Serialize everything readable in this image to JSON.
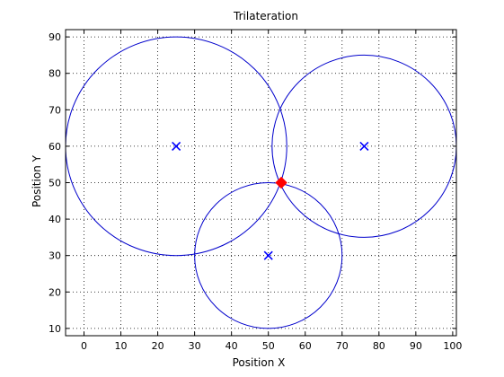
{
  "chart_data": {
    "type": "scatter",
    "title": "Trilateration",
    "xlabel": "Position X",
    "ylabel": "Position Y",
    "xlim": [
      -5,
      101
    ],
    "ylim": [
      8,
      92
    ],
    "xticks": [
      0,
      10,
      20,
      30,
      40,
      50,
      60,
      70,
      80,
      90,
      100
    ],
    "yticks": [
      10,
      20,
      30,
      40,
      50,
      60,
      70,
      80,
      90
    ],
    "grid": true,
    "circles": [
      {
        "cx": 25,
        "cy": 60,
        "r": 30
      },
      {
        "cx": 76,
        "cy": 60,
        "r": 25
      },
      {
        "cx": 50,
        "cy": 30,
        "r": 20
      }
    ],
    "anchors": [
      {
        "x": 25,
        "y": 60
      },
      {
        "x": 76,
        "y": 60
      },
      {
        "x": 50,
        "y": 30
      }
    ],
    "estimate": {
      "x": 53.5,
      "y": 50
    },
    "colors": {
      "circle": "#0000cc",
      "anchor": "#0000ff",
      "estimate": "#ff0000"
    }
  }
}
